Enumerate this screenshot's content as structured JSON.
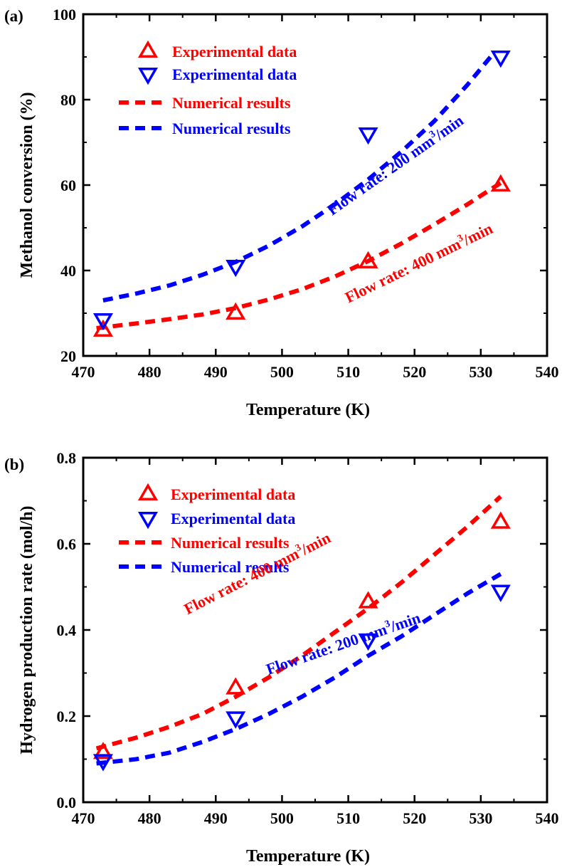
{
  "colors": {
    "red": "#ff0000",
    "blue": "#0000ff",
    "axis": "#000000"
  },
  "chart_data": [
    {
      "panel_label": "(a)",
      "type": "scatter+line",
      "xlabel": "Temperature (K)",
      "ylabel": "Methanol conversion (%)",
      "xlim": [
        470,
        540
      ],
      "ylim": [
        20,
        100
      ],
      "xticks": [
        470,
        480,
        490,
        500,
        510,
        520,
        530,
        540
      ],
      "yticks": [
        20,
        40,
        60,
        80,
        100
      ],
      "grid": false,
      "legend_position": "top-left",
      "legend": [
        {
          "label": "Experimental data",
          "marker": "triangle-up",
          "color": "red"
        },
        {
          "label": "Experimental data",
          "marker": "triangle-down",
          "color": "blue"
        },
        {
          "label": "Numerical results",
          "line": "dashed",
          "color": "red"
        },
        {
          "label": "Numerical results",
          "line": "dashed",
          "color": "blue"
        }
      ],
      "annotations": [
        {
          "prefix": "Flow rate: 200 mm",
          "sup": "3",
          "suffix": "/min",
          "color": "blue"
        },
        {
          "prefix": "Flow rate: 400 mm",
          "sup": "3",
          "suffix": "/min",
          "color": "red"
        }
      ],
      "series": [
        {
          "kind": "experimental",
          "marker": "triangle-up",
          "color": "red",
          "x": [
            473,
            493,
            513,
            533
          ],
          "y": [
            26,
            30,
            42,
            60
          ]
        },
        {
          "kind": "experimental",
          "marker": "triangle-down",
          "color": "blue",
          "x": [
            473,
            493,
            513,
            533
          ],
          "y": [
            28.5,
            41,
            72,
            90
          ]
        },
        {
          "kind": "numerical",
          "line": "dashed",
          "color": "red",
          "x": [
            472,
            478,
            483,
            488,
            493,
            498,
            503,
            508,
            513,
            518,
            523,
            528,
            533
          ],
          "y": [
            26.5,
            27.6,
            28.6,
            29.7,
            31.2,
            33.2,
            35.6,
            38.6,
            42.2,
            46.3,
            50.8,
            55.5,
            60.5
          ]
        },
        {
          "kind": "numerical",
          "line": "dashed",
          "color": "blue",
          "x": [
            473,
            478,
            483,
            488,
            493,
            498,
            503,
            508,
            513,
            518,
            523,
            528,
            532
          ],
          "y": [
            33,
            34.6,
            36.5,
            39,
            42,
            45.8,
            50.3,
            55.5,
            61.3,
            67.8,
            75,
            83.5,
            91
          ]
        }
      ]
    },
    {
      "panel_label": "(b)",
      "type": "scatter+line",
      "xlabel": "Temperature (K)",
      "ylabel": "Hydrogen production rate (mol/h)",
      "xlim": [
        470,
        540
      ],
      "ylim": [
        0.0,
        0.8
      ],
      "xticks": [
        470,
        480,
        490,
        500,
        510,
        520,
        530,
        540
      ],
      "yticks": [
        "0.0",
        "0.2",
        "0.4",
        "0.6",
        "0.8"
      ],
      "grid": false,
      "legend_position": "top-left",
      "legend": [
        {
          "label": "Experimental data",
          "marker": "triangle-up",
          "color": "red"
        },
        {
          "label": "Experimental data",
          "marker": "triangle-down",
          "color": "blue"
        },
        {
          "label": "Numerical results",
          "line": "dashed",
          "color": "red"
        },
        {
          "label": "Numerical results",
          "line": "dashed",
          "color": "blue"
        }
      ],
      "annotations": [
        {
          "prefix": "Flow rate: 400 mm",
          "sup": "3",
          "suffix": "/min",
          "color": "red"
        },
        {
          "prefix": "Flow rate: 200 mm",
          "sup": "3",
          "suffix": "/min",
          "color": "blue"
        }
      ],
      "series": [
        {
          "kind": "experimental",
          "marker": "triangle-up",
          "color": "red",
          "x": [
            473,
            493,
            513,
            533
          ],
          "y": [
            0.115,
            0.265,
            0.465,
            0.65
          ]
        },
        {
          "kind": "experimental",
          "marker": "triangle-down",
          "color": "blue",
          "x": [
            473,
            493,
            513,
            533
          ],
          "y": [
            0.097,
            0.196,
            0.377,
            0.49
          ]
        },
        {
          "kind": "numerical",
          "line": "dashed",
          "color": "red",
          "x": [
            472,
            478,
            483,
            488,
            493,
            498,
            503,
            508,
            513,
            518,
            523,
            528,
            533
          ],
          "y": [
            0.125,
            0.15,
            0.175,
            0.205,
            0.245,
            0.29,
            0.34,
            0.395,
            0.45,
            0.51,
            0.575,
            0.64,
            0.71
          ]
        },
        {
          "kind": "numerical",
          "line": "dashed",
          "color": "blue",
          "x": [
            472,
            478,
            483,
            488,
            493,
            498,
            503,
            508,
            513,
            518,
            523,
            528,
            533
          ],
          "y": [
            0.09,
            0.1,
            0.115,
            0.14,
            0.17,
            0.205,
            0.245,
            0.29,
            0.34,
            0.385,
            0.435,
            0.485,
            0.53
          ]
        }
      ]
    }
  ]
}
